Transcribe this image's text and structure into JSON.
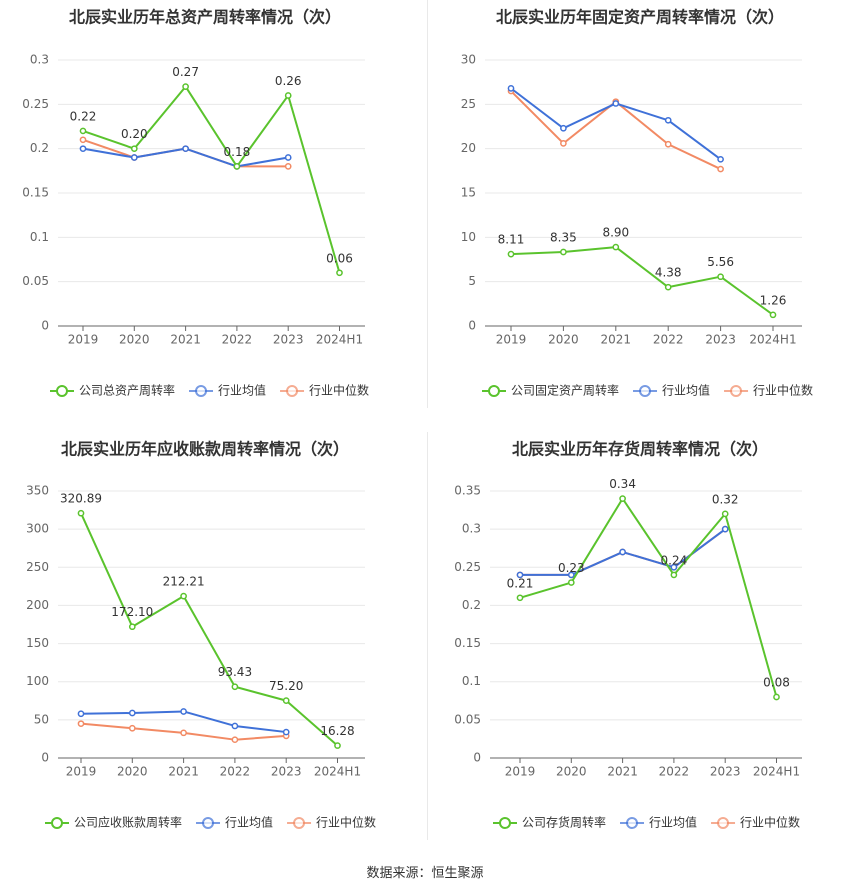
{
  "source": "数据来源：恒生聚源",
  "colors": {
    "company": "#5ac32d",
    "avg": "#3f71d8",
    "median": "#f28a64"
  },
  "chart_data": [
    {
      "type": "line",
      "title": "北辰实业历年总资产周转率情况（次）",
      "categories": [
        "2019",
        "2020",
        "2021",
        "2022",
        "2023",
        "2024H1"
      ],
      "yticks": [
        "0",
        "0.05",
        "0.1",
        "0.15",
        "0.2",
        "0.25",
        "0.3"
      ],
      "ylim": [
        0,
        0.3
      ],
      "series": [
        {
          "name": "公司总资产周转率",
          "key": "company",
          "values": [
            0.22,
            0.2,
            0.27,
            0.18,
            0.26,
            0.06
          ],
          "labels": [
            "0.22",
            "0.20",
            "0.27",
            "0.18",
            "0.26",
            "0.06"
          ]
        },
        {
          "name": "行业均值",
          "key": "avg",
          "values": [
            0.2,
            0.19,
            0.2,
            0.18,
            0.19,
            null
          ]
        },
        {
          "name": "行业中位数",
          "key": "median",
          "values": [
            0.21,
            0.19,
            0.2,
            0.18,
            0.18,
            null
          ]
        }
      ]
    },
    {
      "type": "line",
      "title": "北辰实业历年固定资产周转率情况（次）",
      "categories": [
        "2019",
        "2020",
        "2021",
        "2022",
        "2023",
        "2024H1"
      ],
      "yticks": [
        "0",
        "5",
        "10",
        "15",
        "20",
        "25",
        "30"
      ],
      "ylim": [
        0,
        30
      ],
      "series": [
        {
          "name": "公司固定资产周转率",
          "key": "company",
          "values": [
            8.11,
            8.35,
            8.9,
            4.38,
            5.56,
            1.26
          ],
          "labels": [
            "8.11",
            "8.35",
            "8.90",
            "4.38",
            "5.56",
            "1.26"
          ]
        },
        {
          "name": "行业均值",
          "key": "avg",
          "values": [
            26.8,
            22.3,
            25.1,
            23.2,
            18.8,
            null
          ]
        },
        {
          "name": "行业中位数",
          "key": "median",
          "values": [
            26.5,
            20.6,
            25.3,
            20.5,
            17.7,
            null
          ]
        }
      ]
    },
    {
      "type": "line",
      "title": "北辰实业历年应收账款周转率情况（次）",
      "categories": [
        "2019",
        "2020",
        "2021",
        "2022",
        "2023",
        "2024H1"
      ],
      "yticks": [
        "0",
        "50",
        "100",
        "150",
        "200",
        "250",
        "300",
        "350"
      ],
      "ylim": [
        0,
        350
      ],
      "series": [
        {
          "name": "公司应收账款周转率",
          "key": "company",
          "values": [
            320.89,
            172.1,
            212.21,
            93.43,
            75.2,
            16.28
          ],
          "labels": [
            "320.89",
            "172.10",
            "212.21",
            "93.43",
            "75.20",
            "16.28"
          ]
        },
        {
          "name": "行业均值",
          "key": "avg",
          "values": [
            58,
            59,
            61,
            42,
            34,
            null
          ]
        },
        {
          "name": "行业中位数",
          "key": "median",
          "values": [
            45,
            39,
            33,
            24,
            29,
            null
          ]
        }
      ]
    },
    {
      "type": "line",
      "title": "北辰实业历年存货周转率情况（次）",
      "categories": [
        "2019",
        "2020",
        "2021",
        "2022",
        "2023",
        "2024H1"
      ],
      "yticks": [
        "0",
        "0.05",
        "0.1",
        "0.15",
        "0.2",
        "0.25",
        "0.3",
        "0.35"
      ],
      "ylim": [
        0,
        0.35
      ],
      "series": [
        {
          "name": "公司存货周转率",
          "key": "company",
          "values": [
            0.21,
            0.23,
            0.34,
            0.24,
            0.32,
            0.08
          ],
          "labels": [
            "0.21",
            "0.23",
            "0.34",
            "0.24",
            "0.32",
            "0.08"
          ]
        },
        {
          "name": "行业均值",
          "key": "avg",
          "values": [
            0.24,
            0.24,
            0.27,
            0.25,
            0.3,
            null
          ]
        },
        {
          "name": "行业中位数",
          "key": "median",
          "values": [
            0.24,
            0.24,
            0.27,
            0.25,
            0.3,
            null
          ]
        }
      ]
    }
  ]
}
